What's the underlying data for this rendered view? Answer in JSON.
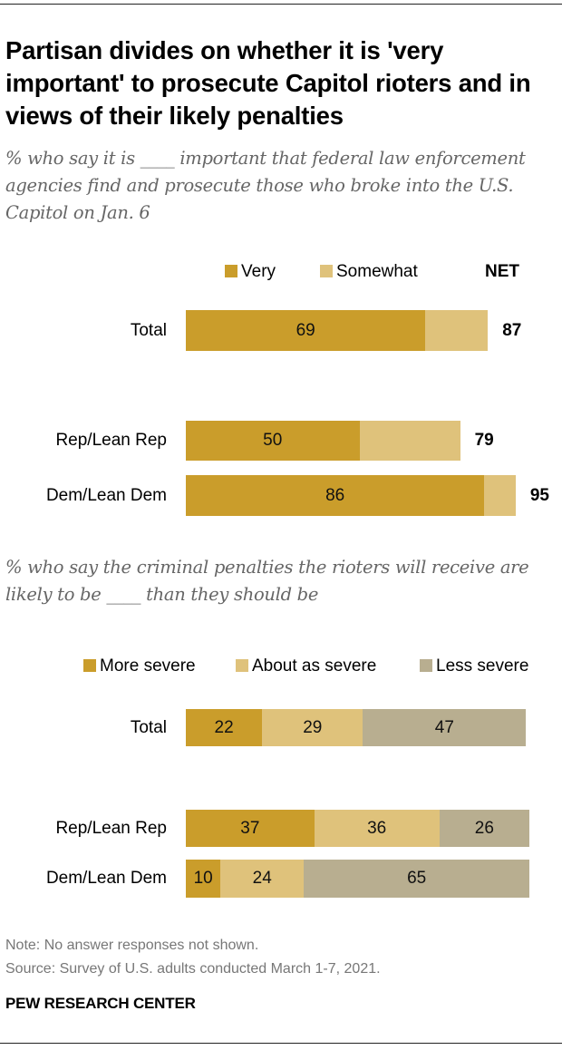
{
  "title": "Partisan divides on whether it is 'very important' to prosecute Capitol rioters and in views of their likely penalties",
  "colors": {
    "very": "#CA9D2B",
    "somewhat": "#DFC27B",
    "more_severe": "#CA9D2B",
    "about_as_severe": "#DFC27B",
    "less_severe": "#B8AE90"
  },
  "chart_data": [
    {
      "type": "bar",
      "orientation": "horizontal-stacked",
      "subtitle": "% who say it is ____ important that federal law enforcement agencies find and prosecute those who broke into the U.S. Capitol on Jan. 6",
      "categories": [
        "Total",
        "Rep/Lean Rep",
        "Dem/Lean Dem"
      ],
      "series": [
        {
          "name": "Very",
          "values": [
            69,
            50,
            86
          ],
          "labels": [
            "69",
            "50",
            "86"
          ]
        },
        {
          "name": "Somewhat",
          "values": [
            18,
            29,
            9
          ],
          "labels": [
            "",
            "",
            ""
          ]
        }
      ],
      "net_header": "NET",
      "net": [
        87,
        79,
        95
      ],
      "legend": [
        "Very",
        "Somewhat"
      ],
      "legend_position": "top",
      "xlim": [
        0,
        100
      ],
      "grid": false
    },
    {
      "type": "bar",
      "orientation": "horizontal-stacked",
      "subtitle": "% who say the criminal penalties the rioters will receive are likely to be ____ than they should be",
      "categories": [
        "Total",
        "Rep/Lean Rep",
        "Dem/Lean Dem"
      ],
      "series": [
        {
          "name": "More severe",
          "values": [
            22,
            37,
            10
          ],
          "labels": [
            "22",
            "37",
            "10"
          ]
        },
        {
          "name": "About as severe",
          "values": [
            29,
            36,
            24
          ],
          "labels": [
            "29",
            "36",
            "24"
          ]
        },
        {
          "name": "Less severe",
          "values": [
            47,
            26,
            65
          ],
          "labels": [
            "47",
            "26",
            "65"
          ]
        }
      ],
      "legend": [
        "More severe",
        "About as severe",
        "Less severe"
      ],
      "legend_position": "top",
      "xlim": [
        0,
        100
      ],
      "grid": false
    }
  ],
  "footer": {
    "note": "Note: No answer responses not shown.",
    "source": "Source: Survey of U.S. adults conducted March 1-7, 2021.",
    "brand": "PEW RESEARCH CENTER"
  }
}
